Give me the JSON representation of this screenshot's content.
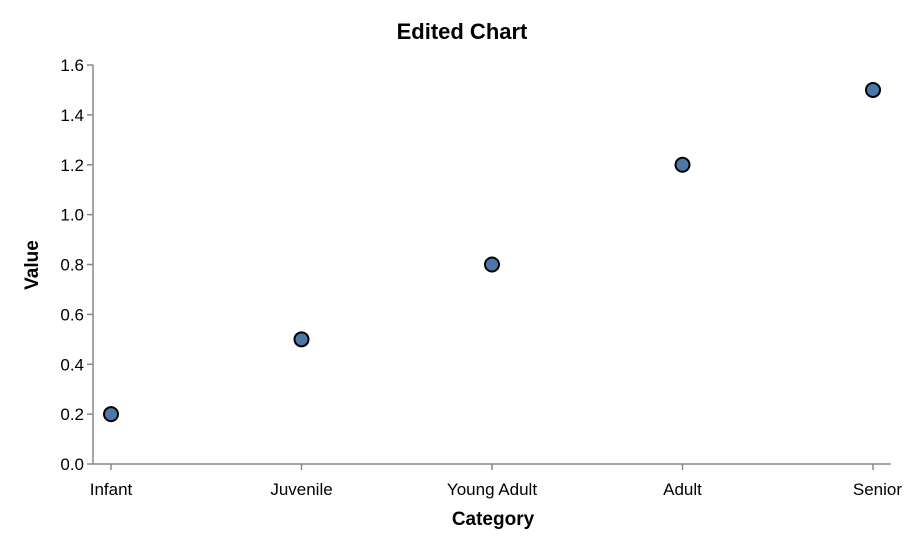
{
  "chart_data": {
    "type": "scatter",
    "title": "Edited Chart",
    "xlabel": "Category",
    "ylabel": "Value",
    "categories": [
      "Infant",
      "Juvenile",
      "Young Adult",
      "Adult",
      "Senior"
    ],
    "values": [
      0.2,
      0.5,
      0.8,
      1.2,
      1.5
    ],
    "ylim": [
      0,
      1.6
    ],
    "yticks": [
      "0.0",
      "0.2",
      "0.4",
      "0.6",
      "0.8",
      "1.0",
      "1.2",
      "1.4",
      "1.6"
    ],
    "grid": false,
    "legend": "none",
    "point_color": "#4c78a8"
  }
}
